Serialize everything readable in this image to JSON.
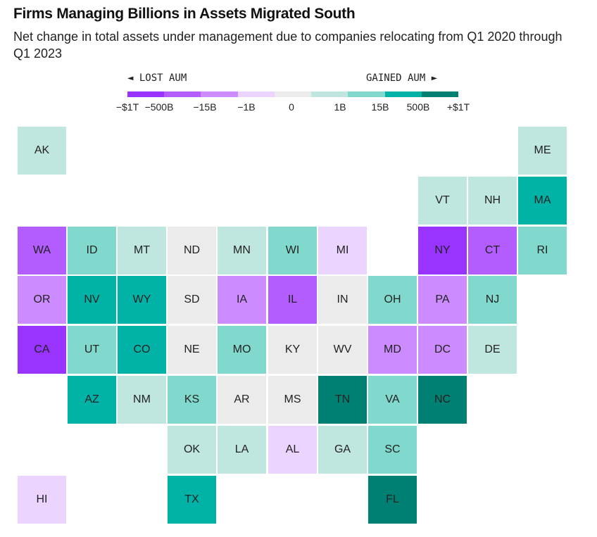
{
  "header": {
    "title": "Firms Managing Billions in Assets Migrated South",
    "subtitle": "Net change in total assets under management due to companies relocating from Q1 2020 through Q1 2023"
  },
  "legend": {
    "lost_label": "◄ LOST AUM",
    "gained_label": "GAINED AUM ►",
    "bins": [
      {
        "label": "−$1T",
        "color": "#9933ff"
      },
      {
        "label": "−500B",
        "color": "#b35cff"
      },
      {
        "label": "−15B",
        "color": "#cc8cff"
      },
      {
        "label": "−1B",
        "color": "#ebd4ff"
      },
      {
        "label": "0",
        "color": "#ebebeb"
      },
      {
        "label": "1B",
        "color": "#bfe6df"
      },
      {
        "label": "15B",
        "color": "#80d9cc"
      },
      {
        "label": "500B",
        "color": "#00b3a6"
      },
      {
        "label": "+$1T",
        "color": "#008073"
      }
    ]
  },
  "chart_data": {
    "type": "heatmap",
    "title": "Firms Managing Billions in Assets Migrated South",
    "subtitle": "Net change in total assets under management due to companies relocating from Q1 2020 through Q1 2023",
    "scale_ticks": [
      "−$1T",
      "−500B",
      "−15B",
      "−1B",
      "0",
      "1B",
      "15B",
      "500B",
      "+$1T"
    ],
    "bin_colors": {
      "lost_1T": "#9933ff",
      "lost_500B_1T": "#b35cff",
      "lost_15B_500B": "#cc8cff",
      "lost_1B_15B": "#ebd4ff",
      "zero": "#ebebeb",
      "gained_1B_15B": "#bfe6df",
      "gained_15B_500B": "#80d9cc",
      "gained_500B_1T": "#00b3a6",
      "gained_1T": "#008073"
    },
    "states": [
      {
        "state": "AK",
        "row": 0,
        "col": 0,
        "bin": "gained_1B_15B"
      },
      {
        "state": "ME",
        "row": 0,
        "col": 10,
        "bin": "gained_1B_15B"
      },
      {
        "state": "VT",
        "row": 1,
        "col": 8,
        "bin": "gained_1B_15B"
      },
      {
        "state": "NH",
        "row": 1,
        "col": 9,
        "bin": "gained_1B_15B"
      },
      {
        "state": "MA",
        "row": 1,
        "col": 10,
        "bin": "gained_500B_1T"
      },
      {
        "state": "WA",
        "row": 2,
        "col": 0,
        "bin": "lost_500B_1T"
      },
      {
        "state": "ID",
        "row": 2,
        "col": 1,
        "bin": "gained_15B_500B"
      },
      {
        "state": "MT",
        "row": 2,
        "col": 2,
        "bin": "gained_1B_15B"
      },
      {
        "state": "ND",
        "row": 2,
        "col": 3,
        "bin": "zero"
      },
      {
        "state": "MN",
        "row": 2,
        "col": 4,
        "bin": "gained_1B_15B"
      },
      {
        "state": "WI",
        "row": 2,
        "col": 5,
        "bin": "gained_15B_500B"
      },
      {
        "state": "MI",
        "row": 2,
        "col": 6,
        "bin": "lost_1B_15B"
      },
      {
        "state": "NY",
        "row": 2,
        "col": 8,
        "bin": "lost_1T"
      },
      {
        "state": "CT",
        "row": 2,
        "col": 9,
        "bin": "lost_500B_1T"
      },
      {
        "state": "RI",
        "row": 2,
        "col": 10,
        "bin": "gained_15B_500B"
      },
      {
        "state": "OR",
        "row": 3,
        "col": 0,
        "bin": "lost_15B_500B"
      },
      {
        "state": "NV",
        "row": 3,
        "col": 1,
        "bin": "gained_500B_1T"
      },
      {
        "state": "WY",
        "row": 3,
        "col": 2,
        "bin": "gained_500B_1T"
      },
      {
        "state": "SD",
        "row": 3,
        "col": 3,
        "bin": "zero"
      },
      {
        "state": "IA",
        "row": 3,
        "col": 4,
        "bin": "lost_15B_500B"
      },
      {
        "state": "IL",
        "row": 3,
        "col": 5,
        "bin": "lost_500B_1T"
      },
      {
        "state": "IN",
        "row": 3,
        "col": 6,
        "bin": "zero"
      },
      {
        "state": "OH",
        "row": 3,
        "col": 7,
        "bin": "gained_15B_500B"
      },
      {
        "state": "PA",
        "row": 3,
        "col": 8,
        "bin": "lost_15B_500B"
      },
      {
        "state": "NJ",
        "row": 3,
        "col": 9,
        "bin": "gained_15B_500B"
      },
      {
        "state": "CA",
        "row": 4,
        "col": 0,
        "bin": "lost_1T"
      },
      {
        "state": "UT",
        "row": 4,
        "col": 1,
        "bin": "gained_15B_500B"
      },
      {
        "state": "CO",
        "row": 4,
        "col": 2,
        "bin": "gained_500B_1T"
      },
      {
        "state": "NE",
        "row": 4,
        "col": 3,
        "bin": "zero"
      },
      {
        "state": "MO",
        "row": 4,
        "col": 4,
        "bin": "gained_15B_500B"
      },
      {
        "state": "KY",
        "row": 4,
        "col": 5,
        "bin": "zero"
      },
      {
        "state": "WV",
        "row": 4,
        "col": 6,
        "bin": "zero"
      },
      {
        "state": "MD",
        "row": 4,
        "col": 7,
        "bin": "lost_15B_500B"
      },
      {
        "state": "DC",
        "row": 4,
        "col": 8,
        "bin": "lost_15B_500B"
      },
      {
        "state": "DE",
        "row": 4,
        "col": 9,
        "bin": "gained_1B_15B"
      },
      {
        "state": "AZ",
        "row": 5,
        "col": 1,
        "bin": "gained_500B_1T"
      },
      {
        "state": "NM",
        "row": 5,
        "col": 2,
        "bin": "gained_1B_15B"
      },
      {
        "state": "KS",
        "row": 5,
        "col": 3,
        "bin": "gained_15B_500B"
      },
      {
        "state": "AR",
        "row": 5,
        "col": 4,
        "bin": "zero"
      },
      {
        "state": "MS",
        "row": 5,
        "col": 5,
        "bin": "zero"
      },
      {
        "state": "TN",
        "row": 5,
        "col": 6,
        "bin": "gained_1T"
      },
      {
        "state": "VA",
        "row": 5,
        "col": 7,
        "bin": "gained_15B_500B"
      },
      {
        "state": "NC",
        "row": 5,
        "col": 8,
        "bin": "gained_1T"
      },
      {
        "state": "OK",
        "row": 6,
        "col": 3,
        "bin": "gained_1B_15B"
      },
      {
        "state": "LA",
        "row": 6,
        "col": 4,
        "bin": "gained_1B_15B"
      },
      {
        "state": "AL",
        "row": 6,
        "col": 5,
        "bin": "lost_1B_15B"
      },
      {
        "state": "GA",
        "row": 6,
        "col": 6,
        "bin": "gained_1B_15B"
      },
      {
        "state": "SC",
        "row": 6,
        "col": 7,
        "bin": "gained_15B_500B"
      },
      {
        "state": "HI",
        "row": 7,
        "col": 0,
        "bin": "lost_1B_15B"
      },
      {
        "state": "TX",
        "row": 7,
        "col": 3,
        "bin": "gained_500B_1T"
      },
      {
        "state": "FL",
        "row": 7,
        "col": 7,
        "bin": "gained_1T"
      }
    ]
  }
}
